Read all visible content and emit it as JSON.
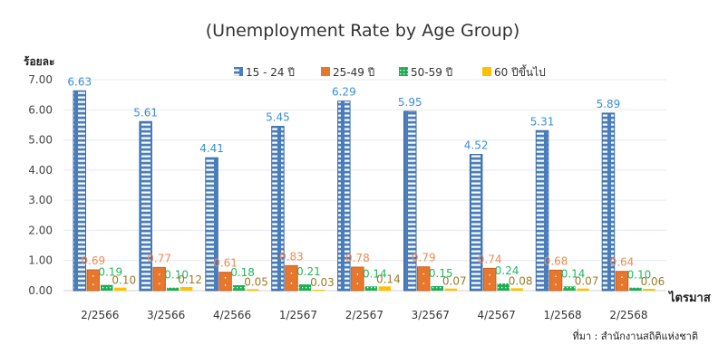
{
  "chart_data": {
    "type": "bar",
    "title": "(Unemployment Rate by Age Group)",
    "ylabel": "ร้อยละ",
    "xlabel": "ไตรมาส",
    "ylim": [
      0,
      7
    ],
    "yticks": [
      "0.00",
      "1.00",
      "2.00",
      "3.00",
      "4.00",
      "5.00",
      "6.00",
      "7.00"
    ],
    "grid": true,
    "legend_position": "top",
    "categories": [
      "2/2566",
      "3/2566",
      "4/2566",
      "1/2567",
      "2/2567",
      "3/2567",
      "4/2567",
      "1/2568",
      "2/2568"
    ],
    "series": [
      {
        "name": "15 - 24 ปี",
        "color": "#4a7ebb",
        "label_color": "#3b8fd6",
        "values": [
          6.63,
          5.61,
          4.41,
          5.45,
          6.29,
          5.95,
          4.52,
          5.31,
          5.89
        ]
      },
      {
        "name": "25-49 ปี",
        "color": "#e8772e",
        "label_color": "#f08a55",
        "values": [
          0.69,
          0.77,
          0.61,
          0.83,
          0.78,
          0.79,
          0.74,
          0.68,
          0.64
        ]
      },
      {
        "name": "50-59 ปี",
        "color": "#1fae54",
        "label_color": "#22b860",
        "values": [
          0.19,
          0.1,
          0.18,
          0.21,
          0.14,
          0.15,
          0.24,
          0.14,
          0.1
        ]
      },
      {
        "name": "60 ปีขึ้นไป",
        "color": "#ffc000",
        "label_color": "#9c7a2a",
        "values": [
          0.1,
          0.12,
          0.05,
          0.03,
          0.14,
          0.07,
          0.08,
          0.07,
          0.06
        ]
      }
    ],
    "source": "ที่มา : สำนักงานสถิติแห่งชาติ"
  }
}
